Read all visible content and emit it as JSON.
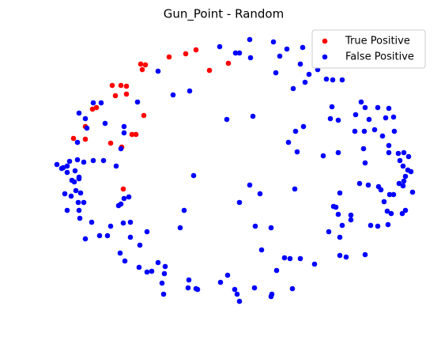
{
  "chart_data": {
    "type": "scatter",
    "title": "Gun_Point - Random",
    "xlim": [
      0,
      470
    ],
    "ylim": [
      0,
      350
    ],
    "legend": "upper right",
    "series": [
      {
        "name": "True Positive",
        "color": "#ff0000",
        "x": [
          118,
          124,
          120,
          154,
          175,
          188,
          205,
          229,
          82,
          93,
          100,
          86,
          100,
          57,
          62,
          48,
          33,
          48,
          80,
          94,
          107,
          112,
          122,
          96
        ],
        "values": [
          309,
          308,
          302,
          318,
          322,
          327,
          301,
          310,
          282,
          282,
          281,
          269,
          271,
          252,
          254,
          230,
          215,
          214,
          209,
          204,
          220,
          220,
          244,
          151
        ]
      },
      {
        "name": "False Positive",
        "color": "#0000ff",
        "x": [
          256,
          218,
          286,
          238,
          243,
          257,
          294,
          303,
          323,
          320,
          289,
          331,
          342,
          353,
          361,
          373,
          140,
          159,
          180,
          311,
          326,
          227,
          360,
          397,
          402,
          418,
          432,
          390,
          407,
          428,
          438,
          358,
          368,
          389,
          401,
          414,
          424,
          439,
          368,
          400,
          402,
          432,
          432,
          444,
          451,
          446,
          457,
          450,
          456,
          460,
          453,
          445,
          450,
          462,
          395,
          406,
          419,
          422,
          433,
          438,
          451,
          426,
          430,
          435,
          449,
          453,
          409,
          418,
          431,
          370,
          362,
          365,
          368,
          384,
          384,
          373,
          356,
          370,
          402,
          370,
          378,
          313,
          349,
          316,
          305,
          314,
          324,
          260,
          185,
          256,
          269,
          243,
          173,
          168,
          263,
          283,
          271,
          290,
          300,
          307,
          320,
          338,
          148,
          145,
          147,
          179,
          178,
          188,
          190,
          219,
          228,
          237,
          240,
          243,
          262,
          284,
          283,
          310,
          92,
          98,
          116,
          126,
          132,
          140,
          149,
          117,
          126,
          105,
          76,
          66,
          48,
          41,
          56,
          80,
          96,
          105,
          90,
          93,
          97,
          103,
          12,
          20,
          25,
          18,
          25,
          35,
          40,
          46,
          38,
          28,
          58,
          71,
          87,
          31,
          40,
          22,
          30,
          36,
          42,
          25,
          39,
          46,
          40,
          34,
          58,
          68,
          40,
          48,
          50,
          73,
          97,
          97,
          114,
          93,
          38
        ],
        "values": [
          340,
          331,
          337,
          323,
          323,
          317,
          319,
          328,
          330,
          309,
          298,
          296,
          302,
          290,
          289,
          289,
          300,
          270,
          275,
          278,
          286,
          239,
          255,
          261,
          254,
          254,
          253,
          245,
          239,
          241,
          242,
          240,
          238,
          224,
          224,
          226,
          218,
          224,
          197,
          202,
          184,
          206,
          197,
          196,
          197,
          187,
          192,
          180,
          175,
          173,
          167,
          158,
          155,
          147,
          158,
          156,
          154,
          150,
          144,
          144,
          161,
          135,
          123,
          120,
          120,
          124,
          105,
          104,
          106,
          146,
          129,
          128,
          119,
          118,
          112,
          105,
          97,
          90,
          68,
          67,
          65,
          151,
          193,
          198,
          210,
          224,
          230,
          243,
          168,
          156,
          145,
          134,
          124,
          102,
          104,
          102,
          74,
          48,
          64,
          63,
          63,
          56,
          44,
          32,
          18,
          36,
          26,
          25,
          24,
          33,
          42,
          24,
          18,
          9,
          26,
          18,
          15,
          25,
          70,
          60,
          52,
          46,
          47,
          58,
          53,
          80,
          97,
          90,
          92,
          92,
          88,
          114,
          109,
          104,
          108,
          109,
          130,
          132,
          139,
          141,
          182,
          178,
          180,
          177,
          172,
          174,
          166,
          185,
          188,
          186,
          187,
          187,
          180,
          162,
          164,
          145,
          142,
          149,
          146,
          124,
          134,
          134,
          124,
          160,
          260,
          260,
          247,
          240,
          228,
          234,
          230,
          222,
          261,
          202,
          210
        ]
      }
    ]
  }
}
